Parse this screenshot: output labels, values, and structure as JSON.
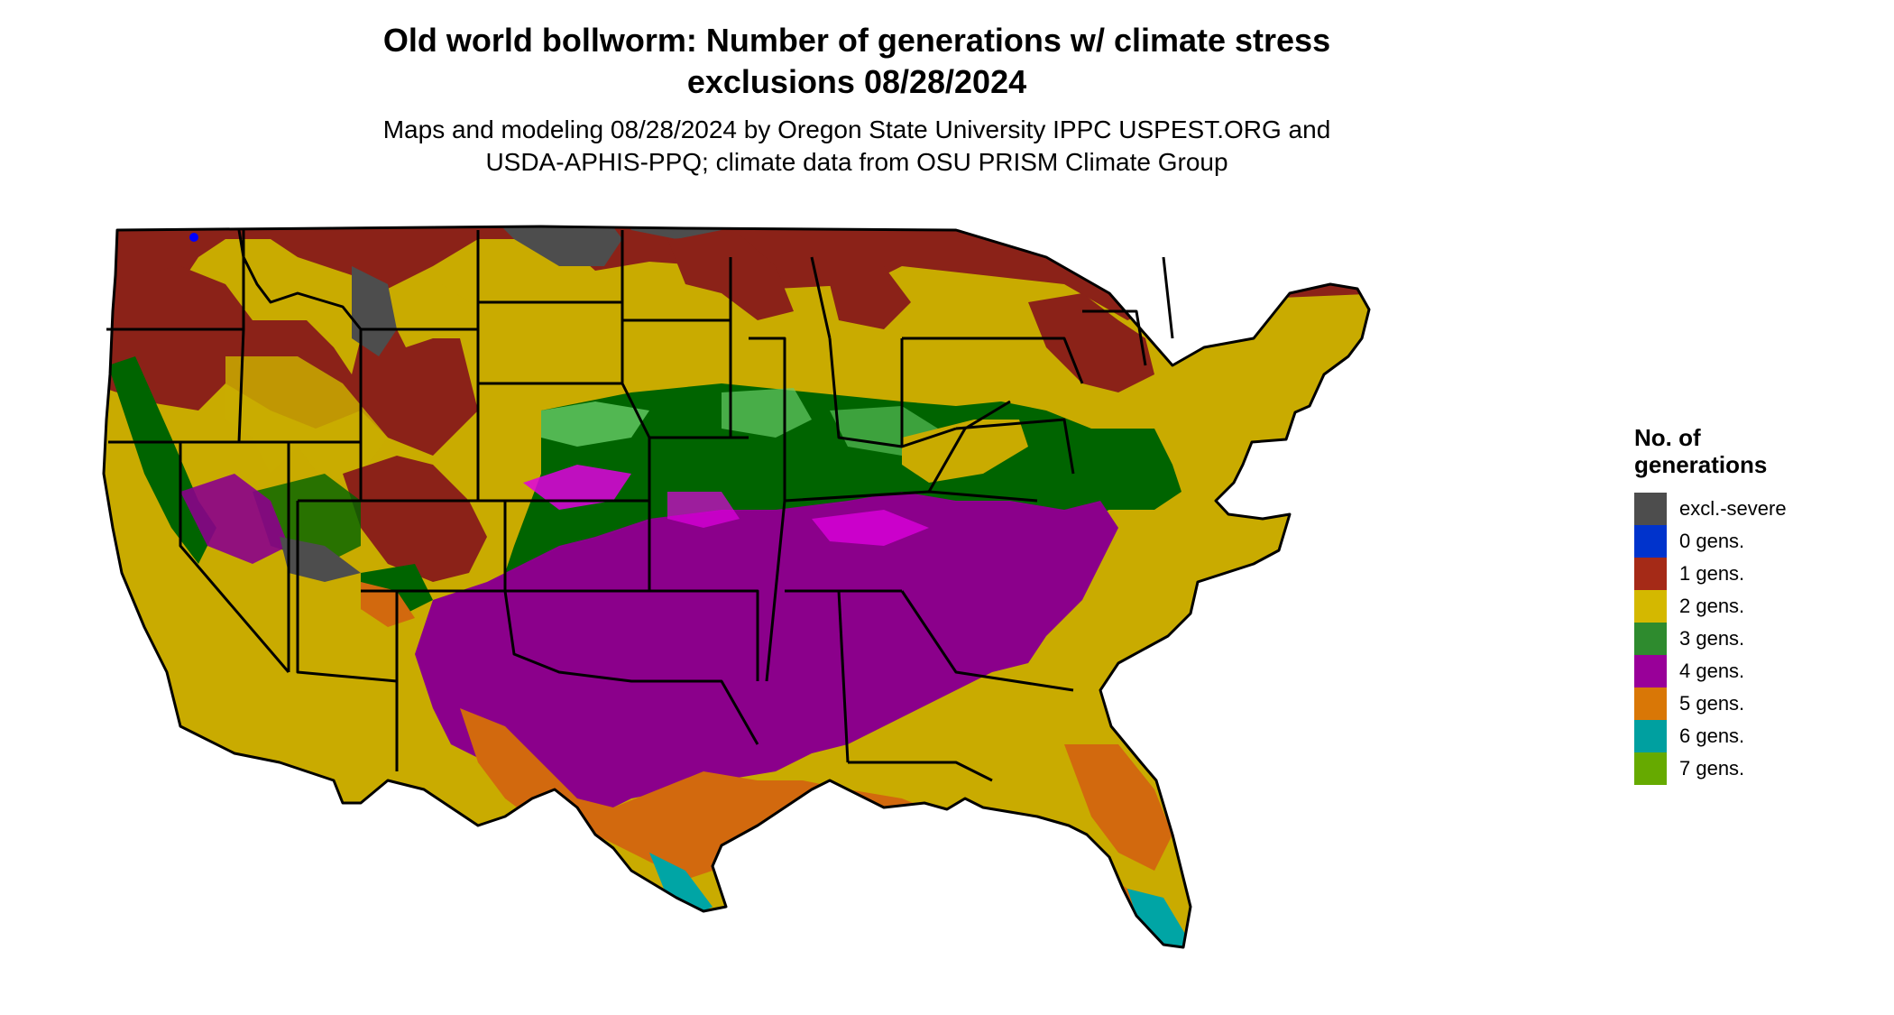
{
  "figure": {
    "title_line1": "Old world bollworm: Number of generations w/ climate stress",
    "title_line2": "exclusions 08/28/2024",
    "subtitle_line1": "Maps and modeling 08/28/2024 by Oregon State University IPPC USPEST.ORG and",
    "subtitle_line2": "USDA-APHIS-PPQ; climate data from OSU PRISM Climate Group"
  },
  "legend": {
    "title_line1": "No. of",
    "title_line2": "generations",
    "items": [
      {
        "label": "excl.-severe",
        "color": "#4d4d4d"
      },
      {
        "label": "0 gens.",
        "color": "#0033cc"
      },
      {
        "label": "1 gens.",
        "color": "#a52a17"
      },
      {
        "label": "2 gens.",
        "color": "#d4b800"
      },
      {
        "label": "3 gens.",
        "color": "#2e8b2e"
      },
      {
        "label": "4 gens.",
        "color": "#990099"
      },
      {
        "label": "5 gens.",
        "color": "#d97706"
      },
      {
        "label": "6 gens.",
        "color": "#00a0a0"
      },
      {
        "label": "7 gens.",
        "color": "#66aa00"
      }
    ]
  },
  "map": {
    "region": "Contiguous United States",
    "zone_colors": {
      "excl_severe": "#4d4d4d",
      "gen1": "#8b2218",
      "gen2": "#c9ab00",
      "gen2_light": "#e8d800",
      "gen3": "#006400",
      "gen3_light": "#66cc66",
      "gen4": "#8b008b",
      "gen4_light": "#e000e0",
      "gen5": "#d2690e",
      "gen6": "#00a5a5",
      "gen0": "#0000ff"
    }
  }
}
